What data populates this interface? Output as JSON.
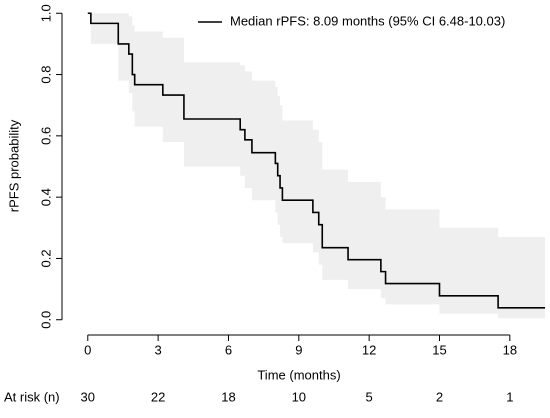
{
  "chart_data": {
    "type": "step",
    "x": [
      0,
      0.13,
      1.3,
      1.75,
      1.9,
      2.0,
      3.2,
      4.1,
      6.5,
      6.7,
      7.0,
      8.0,
      8.1,
      8.2,
      8.3,
      9.6,
      9.85,
      10.0,
      11.1,
      12.5,
      12.7,
      15.0,
      17.5,
      19.5
    ],
    "series": [
      {
        "name": "Median rPFS: 8.09 months (95% CI 6.48-10.03)",
        "color": "#000000",
        "values": [
          1,
          0.967,
          0.9,
          0.867,
          0.8,
          0.767,
          0.733,
          0.655,
          0.62,
          0.587,
          0.545,
          0.51,
          0.47,
          0.43,
          0.39,
          0.35,
          0.31,
          0.235,
          0.196,
          0.157,
          0.118,
          0.078,
          0.039,
          0.039
        ]
      }
    ],
    "ci": {
      "color": "#efefef",
      "upper": [
        1,
        1,
        1,
        0.99,
        0.96,
        0.94,
        0.92,
        0.84,
        0.83,
        0.81,
        0.78,
        0.76,
        0.73,
        0.7,
        0.65,
        0.62,
        0.58,
        0.49,
        0.45,
        0.4,
        0.36,
        0.3,
        0.27,
        0.27
      ],
      "lower": [
        1,
        0.9,
        0.78,
        0.74,
        0.68,
        0.63,
        0.58,
        0.5,
        0.47,
        0.43,
        0.39,
        0.35,
        0.31,
        0.27,
        0.25,
        0.22,
        0.18,
        0.13,
        0.1,
        0.07,
        0.05,
        0.02,
        0.005,
        0.005
      ]
    },
    "xlabel": "Time (months)",
    "ylabel": "rPFS probability",
    "xlim": [
      -1.1,
      19.5
    ],
    "ylim": [
      -0.04,
      1.04
    ],
    "xticks": [
      0,
      3,
      6,
      9,
      12,
      15,
      18
    ],
    "yticks": [
      {
        "value": 0,
        "label": "0.0"
      },
      0.2,
      0.4,
      0.6,
      0.8,
      {
        "value": 1,
        "label": "1.0"
      }
    ],
    "at_risk": {
      "label": "At risk (n)",
      "values": [
        30,
        22,
        18,
        10,
        5,
        2,
        1
      ]
    }
  }
}
